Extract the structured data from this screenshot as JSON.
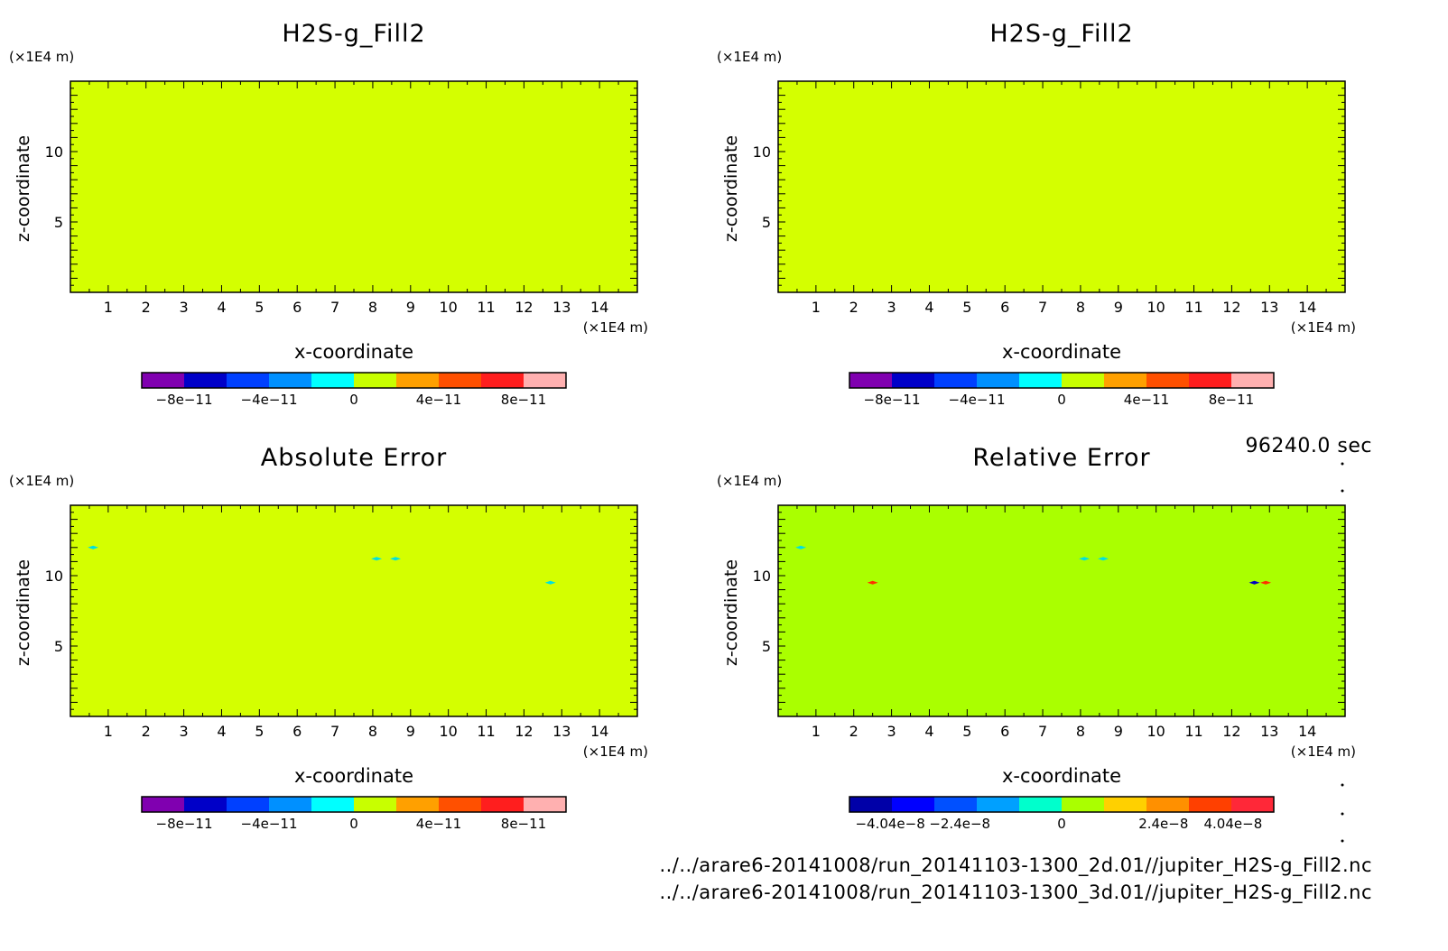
{
  "time_label": "96240.0 sec",
  "files": [
    "../../arare6-20141008/run_20141103-1300_2d.01//jupiter_H2S-g_Fill2.nc",
    "../../arare6-20141008/run_20141103-1300_3d.01//jupiter_H2S-g_Fill2.nc"
  ],
  "chart_data": [
    {
      "type": "heatmap",
      "title": "H2S-g_Fill2",
      "xlabel": "x-coordinate",
      "ylabel": "z-coordinate",
      "x_unit": "(×1E4 m)",
      "y_unit": "(×1E4 m)",
      "xlim": [
        0,
        15
      ],
      "ylim": [
        0,
        15
      ],
      "x_ticks": [
        1,
        2,
        3,
        4,
        5,
        6,
        7,
        8,
        9,
        10,
        11,
        12,
        13,
        14
      ],
      "y_ticks": [
        5,
        10
      ],
      "field_color": "#d4ff00",
      "field_value": 0,
      "anomalies": [],
      "colorbar": {
        "colors": [
          "#8000b0",
          "#0000c8",
          "#0040ff",
          "#0090ff",
          "#00ffff",
          "#c8ff00",
          "#ffa000",
          "#ff5000",
          "#ff1e1e",
          "#ffb0b0"
        ],
        "tick_values": [
          -8e-11,
          -4e-11,
          0,
          4e-11,
          8e-11
        ],
        "tick_labels": [
          "−8e−11",
          "−4e−11",
          "0",
          "4e−11",
          "8e−11"
        ],
        "range": [
          -1e-10,
          1e-10
        ]
      }
    },
    {
      "type": "heatmap",
      "title": "H2S-g_Fill2",
      "xlabel": "x-coordinate",
      "ylabel": "z-coordinate",
      "x_unit": "(×1E4 m)",
      "y_unit": "(×1E4 m)",
      "xlim": [
        0,
        15
      ],
      "ylim": [
        0,
        15
      ],
      "x_ticks": [
        1,
        2,
        3,
        4,
        5,
        6,
        7,
        8,
        9,
        10,
        11,
        12,
        13,
        14
      ],
      "y_ticks": [
        5,
        10
      ],
      "field_color": "#d4ff00",
      "field_value": 0,
      "anomalies": [],
      "colorbar": {
        "colors": [
          "#8000b0",
          "#0000c8",
          "#0040ff",
          "#0090ff",
          "#00ffff",
          "#c8ff00",
          "#ffa000",
          "#ff5000",
          "#ff1e1e",
          "#ffb0b0"
        ],
        "tick_values": [
          -8e-11,
          -4e-11,
          0,
          4e-11,
          8e-11
        ],
        "tick_labels": [
          "−8e−11",
          "−4e−11",
          "0",
          "4e−11",
          "8e−11"
        ],
        "range": [
          -1e-10,
          1e-10
        ]
      }
    },
    {
      "type": "heatmap",
      "title": "Absolute Error",
      "xlabel": "x-coordinate",
      "ylabel": "z-coordinate",
      "x_unit": "(×1E4 m)",
      "y_unit": "(×1E4 m)",
      "xlim": [
        0,
        15
      ],
      "ylim": [
        0,
        15
      ],
      "x_ticks": [
        1,
        2,
        3,
        4,
        5,
        6,
        7,
        8,
        9,
        10,
        11,
        12,
        13,
        14
      ],
      "y_ticks": [
        5,
        10
      ],
      "field_color": "#d4ff00",
      "field_value": 0,
      "anomalies": [
        {
          "x": 0.6,
          "z": 12.0,
          "color": "#00e0e0"
        },
        {
          "x": 8.1,
          "z": 11.2,
          "color": "#00e0e0"
        },
        {
          "x": 8.6,
          "z": 11.2,
          "color": "#00e0e0"
        },
        {
          "x": 12.7,
          "z": 9.5,
          "color": "#00e0e0"
        }
      ],
      "colorbar": {
        "colors": [
          "#8000b0",
          "#0000c8",
          "#0040ff",
          "#0090ff",
          "#00ffff",
          "#c8ff00",
          "#ffa000",
          "#ff5000",
          "#ff1e1e",
          "#ffb0b0"
        ],
        "tick_values": [
          -8e-11,
          -4e-11,
          0,
          4e-11,
          8e-11
        ],
        "tick_labels": [
          "−8e−11",
          "−4e−11",
          "0",
          "4e−11",
          "8e−11"
        ],
        "range": [
          -1e-10,
          1e-10
        ]
      }
    },
    {
      "type": "heatmap",
      "title": "Relative Error",
      "xlabel": "x-coordinate",
      "ylabel": "z-coordinate",
      "x_unit": "(×1E4 m)",
      "y_unit": "(×1E4 m)",
      "xlim": [
        0,
        15
      ],
      "ylim": [
        0,
        15
      ],
      "x_ticks": [
        1,
        2,
        3,
        4,
        5,
        6,
        7,
        8,
        9,
        10,
        11,
        12,
        13,
        14
      ],
      "y_ticks": [
        5,
        10
      ],
      "field_color": "#aaff00",
      "field_value": 0,
      "anomalies": [
        {
          "x": 0.6,
          "z": 12.0,
          "color": "#00e0e0"
        },
        {
          "x": 2.5,
          "z": 9.5,
          "color": "#ff3000"
        },
        {
          "x": 8.1,
          "z": 11.2,
          "color": "#00e0e0"
        },
        {
          "x": 8.6,
          "z": 11.2,
          "color": "#00e0e0"
        },
        {
          "x": 12.6,
          "z": 9.5,
          "color": "#0000c0"
        },
        {
          "x": 12.9,
          "z": 9.5,
          "color": "#ff3000"
        }
      ],
      "colorbar": {
        "colors": [
          "#0000a8",
          "#0000ff",
          "#0050ff",
          "#00a0ff",
          "#00ffcc",
          "#aaff00",
          "#ffd000",
          "#ff9000",
          "#ff4000",
          "#ff2838"
        ],
        "tick_values": [
          -4.04e-08,
          -2.4e-08,
          0,
          2.4e-08,
          4.04e-08
        ],
        "tick_labels": [
          "−4.04e−8",
          "−2.4e−8",
          "0",
          "2.4e−8",
          "4.04e−8"
        ],
        "range": [
          -5e-08,
          5e-08
        ]
      }
    }
  ]
}
